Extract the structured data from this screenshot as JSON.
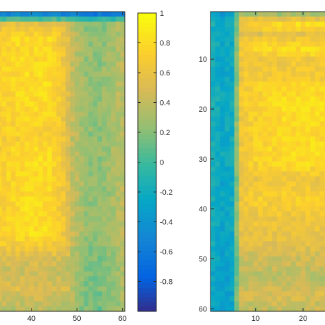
{
  "chart_data": [
    {
      "type": "heatmap",
      "title": "",
      "xlabel": "",
      "ylabel": "",
      "x_ticks": [
        40,
        50,
        60
      ],
      "y_ticks": [],
      "visible_x_range": [
        33,
        60
      ],
      "visible_y_range": [
        1,
        60
      ],
      "value_range": [
        -1,
        1
      ],
      "colormap": "parula",
      "grid": false,
      "profile_x": {
        "x": [
          33,
          36,
          40,
          44,
          47,
          49,
          52,
          55,
          58,
          60
        ],
        "value": [
          0.72,
          0.78,
          0.83,
          0.82,
          0.62,
          0.35,
          0.15,
          0.12,
          0.22,
          0.3
        ]
      },
      "profile_y": {
        "y": [
          1,
          3,
          6,
          10,
          15,
          20,
          26,
          30,
          35,
          40,
          45,
          50,
          53,
          56,
          60
        ],
        "value": [
          -0.75,
          0.55,
          0.8,
          0.78,
          0.85,
          0.8,
          0.7,
          0.85,
          0.78,
          0.82,
          0.85,
          0.45,
          0.38,
          0.48,
          0.3
        ]
      }
    },
    {
      "type": "heatmap",
      "title": "",
      "xlabel": "",
      "ylabel": "",
      "x_ticks": [
        10,
        20
      ],
      "y_ticks": [
        10,
        20,
        30,
        40,
        50,
        60
      ],
      "visible_x_range": [
        1,
        26
      ],
      "visible_y_range": [
        1,
        60
      ],
      "value_range": [
        -1,
        1
      ],
      "colormap": "parula",
      "grid": false,
      "profile_x": {
        "x": [
          1,
          3,
          5,
          7,
          9,
          12,
          15,
          18,
          21,
          24,
          26
        ],
        "value": [
          -0.35,
          -0.45,
          -0.4,
          0.62,
          0.7,
          0.75,
          0.78,
          0.8,
          0.82,
          0.8,
          0.78
        ]
      },
      "profile_y": {
        "y": [
          1,
          3,
          5,
          8,
          10,
          14,
          18,
          22,
          26,
          30,
          34,
          38,
          42,
          46,
          50,
          54,
          57,
          60
        ],
        "value": [
          0.2,
          0.9,
          0.5,
          0.9,
          0.62,
          0.7,
          0.95,
          0.85,
          0.8,
          0.88,
          0.6,
          0.72,
          0.6,
          0.55,
          0.4,
          0.3,
          0.45,
          0.35
        ]
      }
    }
  ],
  "colorbar": {
    "ticks": [
      "1",
      "0.8",
      "0.6",
      "0.4",
      "0.2",
      "0",
      "-0.2",
      "-0.4",
      "-0.6",
      "-0.8"
    ],
    "range": [
      -1,
      1
    ]
  }
}
